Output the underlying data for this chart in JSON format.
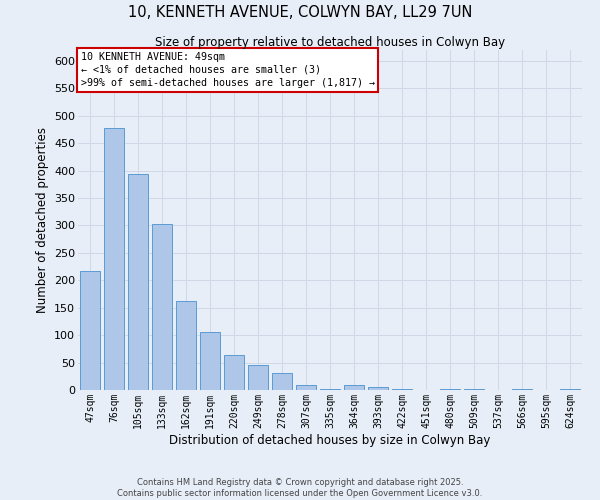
{
  "title": "10, KENNETH AVENUE, COLWYN BAY, LL29 7UN",
  "subtitle": "Size of property relative to detached houses in Colwyn Bay",
  "xlabel": "Distribution of detached houses by size in Colwyn Bay",
  "ylabel": "Number of detached properties",
  "categories": [
    "47sqm",
    "76sqm",
    "105sqm",
    "133sqm",
    "162sqm",
    "191sqm",
    "220sqm",
    "249sqm",
    "278sqm",
    "307sqm",
    "335sqm",
    "364sqm",
    "393sqm",
    "422sqm",
    "451sqm",
    "480sqm",
    "509sqm",
    "537sqm",
    "566sqm",
    "595sqm",
    "624sqm"
  ],
  "values": [
    217,
    478,
    393,
    303,
    163,
    105,
    64,
    46,
    31,
    10,
    2,
    9,
    5,
    2,
    0,
    1,
    1,
    0,
    2,
    0,
    2
  ],
  "bar_color": "#aec6e8",
  "bar_edge_color": "#5b9bd5",
  "annotation_box_text": "10 KENNETH AVENUE: 49sqm\n← <1% of detached houses are smaller (3)\n>99% of semi-detached houses are larger (1,817) →",
  "annotation_box_color": "#ffffff",
  "annotation_box_edge_color": "#cc0000",
  "grid_color": "#d0d8e8",
  "background_color": "#e8eef8",
  "ylim": [
    0,
    620
  ],
  "yticks": [
    0,
    50,
    100,
    150,
    200,
    250,
    300,
    350,
    400,
    450,
    500,
    550,
    600
  ],
  "footer_line1": "Contains HM Land Registry data © Crown copyright and database right 2025.",
  "footer_line2": "Contains public sector information licensed under the Open Government Licence v3.0."
}
